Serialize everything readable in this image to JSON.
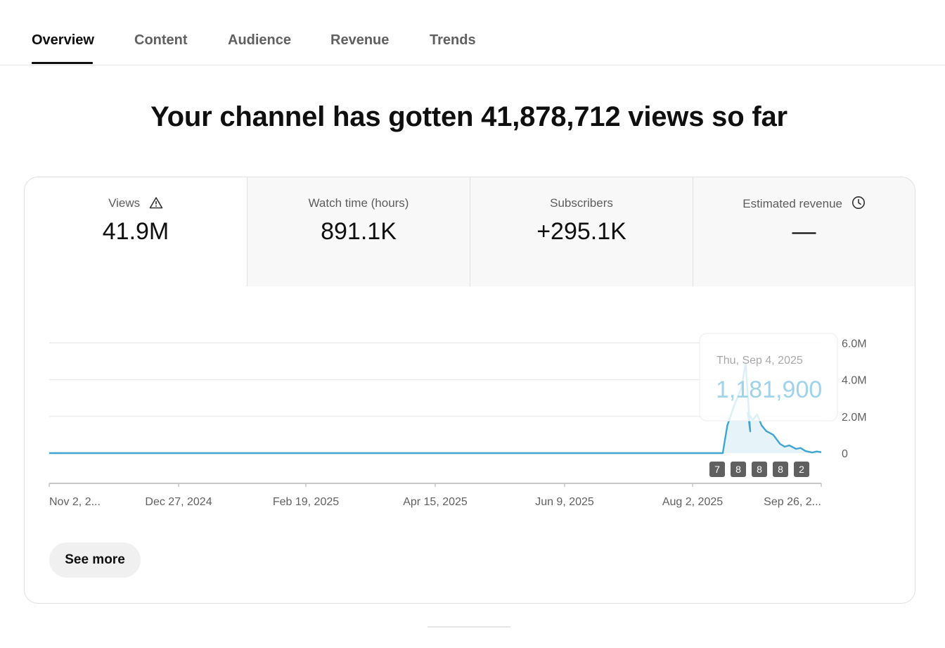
{
  "tabs": [
    {
      "label": "Overview",
      "active": true
    },
    {
      "label": "Content",
      "active": false
    },
    {
      "label": "Audience",
      "active": false
    },
    {
      "label": "Revenue",
      "active": false
    },
    {
      "label": "Trends",
      "active": false
    }
  ],
  "headline": "Your channel has gotten 41,878,712 views so far",
  "metrics": [
    {
      "label": "Views",
      "value": "41.9M",
      "icon": "warning-icon",
      "selected": true
    },
    {
      "label": "Watch time (hours)",
      "value": "891.1K",
      "selected": false
    },
    {
      "label": "Subscribers",
      "value": "+295.1K",
      "selected": false
    },
    {
      "label": "Estimated revenue",
      "value": "—",
      "icon": "clock-icon",
      "selected": false
    }
  ],
  "tooltip": {
    "date": "Thu, Sep 4, 2025",
    "value": "1,181,900"
  },
  "see_more": "See more",
  "colors": {
    "line": "#3ea6d0",
    "fill": "#e6f4fa",
    "tooltip_value": "#9fd3ea",
    "marker_bg": "#606060"
  },
  "chart_data": {
    "type": "area",
    "x_tick_labels": [
      "Nov 2, 2...",
      "Dec 27, 2024",
      "Feb 19, 2025",
      "Apr 15, 2025",
      "Jun 9, 2025",
      "Aug 2, 2025",
      "Sep 26, 2..."
    ],
    "y_tick_labels": [
      "0",
      "2.0M",
      "4.0M",
      "6.0M"
    ],
    "ylim": [
      0,
      6000000
    ],
    "x_range": [
      "2024-11-02",
      "2025-10-05"
    ],
    "grid": true,
    "series": [
      {
        "points": [
          [
            "2024-11-02",
            0
          ],
          [
            "2025-08-20",
            0
          ],
          [
            "2025-08-23",
            0
          ],
          [
            "2025-08-25",
            1500000
          ],
          [
            "2025-08-28",
            2600000
          ],
          [
            "2025-08-31",
            3500000
          ],
          [
            "2025-09-02",
            4900000
          ],
          [
            "2025-09-04",
            1181900
          ],
          [
            "2025-09-03",
            2200000
          ],
          [
            "2025-09-05",
            1800000
          ],
          [
            "2025-09-07",
            2100000
          ],
          [
            "2025-09-09",
            1500000
          ],
          [
            "2025-09-11",
            1200000
          ],
          [
            "2025-09-14",
            1000000
          ],
          [
            "2025-09-17",
            500000
          ],
          [
            "2025-09-19",
            350000
          ],
          [
            "2025-09-21",
            420000
          ],
          [
            "2025-09-24",
            230000
          ],
          [
            "2025-09-26",
            280000
          ],
          [
            "2025-09-28",
            120000
          ],
          [
            "2025-10-01",
            30000
          ],
          [
            "2025-10-03",
            90000
          ],
          [
            "2025-10-05",
            50000
          ]
        ]
      }
    ],
    "markers": [
      "7",
      "8",
      "8",
      "8",
      "2"
    ]
  }
}
